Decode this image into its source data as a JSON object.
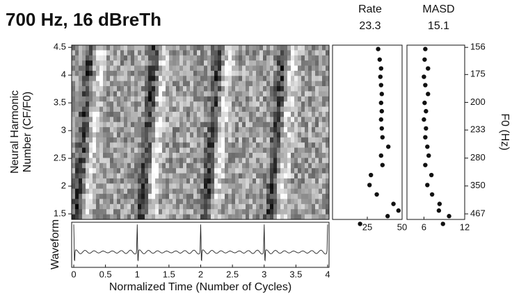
{
  "chart_data": {
    "type": "neurogram",
    "title": "700 Hz, 16 dBreTh",
    "ylabel_lines": [
      "Neural Harmonic",
      "Number (CF/F0)"
    ],
    "xlabel": "Normalized Time (Number of Cycles)",
    "waveform_label": "Waveform",
    "xlim": [
      0,
      4
    ],
    "xticks": [
      0,
      0.5,
      1,
      1.5,
      2,
      2.5,
      3,
      3.5,
      4
    ],
    "ylim": [
      1.4,
      4.54
    ],
    "yticks": [
      1.5,
      2,
      2.5,
      3,
      3.5,
      4,
      4.5
    ],
    "y2label": "F0 (Hz)",
    "y2scale": "reciprocal",
    "y2lim": [
      156,
      467
    ],
    "y2ticks": [
      156,
      175,
      200,
      233,
      280,
      350,
      467
    ],
    "harmonics": [
      4.47,
      4.28,
      4.12,
      3.97,
      3.82,
      3.66,
      3.5,
      3.35,
      3.2,
      3.04,
      2.88,
      2.71,
      2.55,
      2.38,
      2.2,
      2.02,
      1.85,
      1.68,
      1.56,
      1.46,
      1.32
    ],
    "panels": [
      {
        "name": "Rate",
        "summary": "23.3",
        "xlim": [
          0,
          50
        ],
        "xticks": [
          25,
          50
        ],
        "values": [
          32.8,
          33.9,
          34.9,
          34.4,
          34.9,
          35.4,
          34.9,
          35.4,
          34.9,
          35.4,
          35.9,
          40.1,
          34.9,
          35.9,
          27.6,
          26.6,
          31.8,
          43.8,
          47.4,
          39.6,
          19.8
        ]
      },
      {
        "name": "MASD",
        "summary": "15.1",
        "xlim": [
          3.5,
          12
        ],
        "xticks": [
          6,
          12
        ],
        "values": [
          6.2,
          6.1,
          6.6,
          6.0,
          6.2,
          6.6,
          6.1,
          6.3,
          6.0,
          6.3,
          6.2,
          6.5,
          6.7,
          6.2,
          7.1,
          6.5,
          7.2,
          8.3,
          8.2,
          9.7,
          8.8
        ]
      }
    ]
  }
}
